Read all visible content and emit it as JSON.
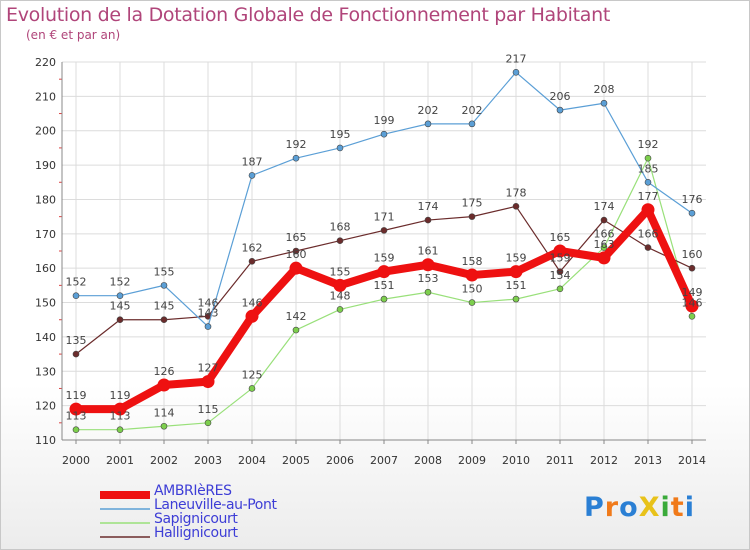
{
  "title": "Evolution de la Dotation Globale de Fonctionnement par Habitant",
  "subtitle": "(en € et par an)",
  "logo": {
    "text": "ProXiti",
    "letters": [
      "P",
      "r",
      "o",
      "X",
      "i",
      "t",
      "i"
    ],
    "colors": [
      "#2a7fd4",
      "#f07a1a",
      "#2a7fd4",
      "#e8c21a",
      "#3aaa3a",
      "#f07a1a",
      "#2a7fd4"
    ]
  },
  "chart_data": {
    "type": "line",
    "title": "Evolution de la Dotation Globale de Fonctionnement par Habitant",
    "ylabel": "(en € et par an)",
    "xlabel": "",
    "ylim": [
      110,
      220
    ],
    "yticks": [
      110,
      120,
      130,
      140,
      150,
      160,
      170,
      180,
      190,
      200,
      210,
      220
    ],
    "categories": [
      "2000",
      "2001",
      "2002",
      "2003",
      "2004",
      "2005",
      "2006",
      "2007",
      "2008",
      "2009",
      "2010",
      "2011",
      "2012",
      "2013",
      "2014"
    ],
    "series": [
      {
        "name": "Sapignicourt",
        "color": "#99e07a",
        "marker": "#7dcf4d",
        "width": 1.2,
        "values": [
          113,
          113,
          114,
          115,
          125,
          142,
          148,
          151,
          153,
          150,
          151,
          154,
          166,
          192,
          146
        ]
      },
      {
        "name": "Hallignicourt",
        "color": "#6b2c2c",
        "marker": "#6b2c2c",
        "width": 1.2,
        "values": [
          135,
          145,
          145,
          146,
          162,
          165,
          168,
          171,
          174,
          175,
          178,
          159,
          174,
          166,
          160
        ]
      },
      {
        "name": "Laneuville-au-Pont",
        "color": "#5b9fd6",
        "marker": "#5b9fd6",
        "width": 1.2,
        "values": [
          152,
          152,
          155,
          143,
          187,
          192,
          195,
          199,
          202,
          202,
          217,
          206,
          208,
          185,
          176
        ]
      },
      {
        "name": "AMBRIèRES",
        "color": "#ee1111",
        "marker": "#ee1111",
        "width": 8,
        "values": [
          119,
          119,
          126,
          127,
          146,
          160,
          155,
          159,
          161,
          158,
          159,
          165,
          163,
          177,
          149
        ]
      }
    ],
    "legend": [
      "AMBRIèRES",
      "Laneuville-au-Pont",
      "Sapignicourt",
      "Hallignicourt"
    ],
    "grid": true,
    "legend_position": "bottom-left"
  }
}
